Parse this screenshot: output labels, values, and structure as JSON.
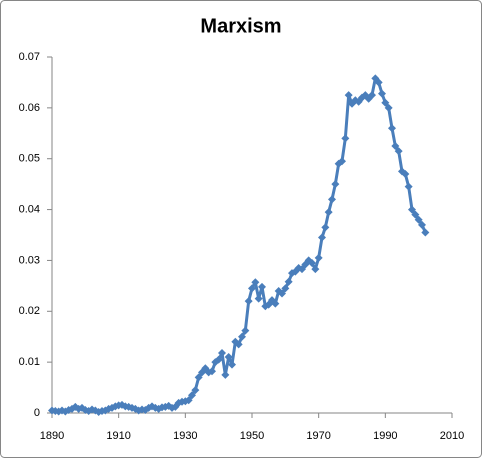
{
  "chart_data": {
    "type": "line",
    "title": "Marxism",
    "x": [
      1890,
      1891,
      1892,
      1893,
      1894,
      1895,
      1896,
      1897,
      1898,
      1899,
      1900,
      1901,
      1902,
      1903,
      1904,
      1905,
      1906,
      1907,
      1908,
      1909,
      1910,
      1911,
      1912,
      1913,
      1914,
      1915,
      1916,
      1917,
      1918,
      1919,
      1920,
      1921,
      1922,
      1923,
      1924,
      1925,
      1926,
      1927,
      1928,
      1929,
      1930,
      1931,
      1932,
      1933,
      1934,
      1935,
      1936,
      1937,
      1938,
      1939,
      1940,
      1941,
      1942,
      1943,
      1944,
      1945,
      1946,
      1947,
      1948,
      1949,
      1950,
      1951,
      1952,
      1953,
      1954,
      1955,
      1956,
      1957,
      1958,
      1959,
      1960,
      1961,
      1962,
      1963,
      1964,
      1965,
      1966,
      1967,
      1968,
      1969,
      1970,
      1971,
      1972,
      1973,
      1974,
      1975,
      1976,
      1977,
      1978,
      1979,
      1980,
      1981,
      1982,
      1983,
      1984,
      1985,
      1986,
      1987,
      1988,
      1989,
      1990,
      1991,
      1992,
      1993,
      1994,
      1995,
      1996,
      1997,
      1998,
      1999,
      2000,
      2001,
      2002
    ],
    "values": [
      0.0005,
      0.0004,
      0.0003,
      0.0005,
      0.0003,
      0.0006,
      0.0008,
      0.0012,
      0.0008,
      0.001,
      0.0006,
      0.0004,
      0.0007,
      0.0005,
      0.0002,
      0.0004,
      0.0005,
      0.0008,
      0.001,
      0.0013,
      0.0015,
      0.0016,
      0.0013,
      0.0012,
      0.001,
      0.0008,
      0.0005,
      0.0007,
      0.0006,
      0.001,
      0.0013,
      0.001,
      0.0008,
      0.0011,
      0.0012,
      0.0014,
      0.001,
      0.0012,
      0.002,
      0.0022,
      0.0023,
      0.0025,
      0.0035,
      0.0045,
      0.007,
      0.008,
      0.0088,
      0.008,
      0.0082,
      0.01,
      0.0105,
      0.0118,
      0.0075,
      0.011,
      0.0095,
      0.014,
      0.0135,
      0.015,
      0.0162,
      0.022,
      0.0245,
      0.0257,
      0.0225,
      0.0248,
      0.021,
      0.0213,
      0.0222,
      0.0215,
      0.024,
      0.0235,
      0.0245,
      0.0258,
      0.0275,
      0.0278,
      0.0285,
      0.0283,
      0.0292,
      0.03,
      0.0295,
      0.0283,
      0.0305,
      0.0345,
      0.0365,
      0.0395,
      0.042,
      0.045,
      0.049,
      0.0495,
      0.054,
      0.0625,
      0.0608,
      0.0615,
      0.0612,
      0.062,
      0.0625,
      0.0618,
      0.0625,
      0.0658,
      0.065,
      0.0628,
      0.061,
      0.06,
      0.056,
      0.0525,
      0.0515,
      0.0475,
      0.047,
      0.0445,
      0.04,
      0.039,
      0.038,
      0.037,
      0.0355
    ],
    "color": "#4a7ebb",
    "xlim": [
      1890,
      2010
    ],
    "xticks": [
      1890,
      1910,
      1930,
      1950,
      1970,
      1990,
      2010
    ],
    "ylim": [
      0,
      0.07
    ],
    "yticks": [
      0,
      0.01,
      0.02,
      0.03,
      0.04,
      0.05,
      0.06,
      0.07
    ],
    "grid": false
  }
}
